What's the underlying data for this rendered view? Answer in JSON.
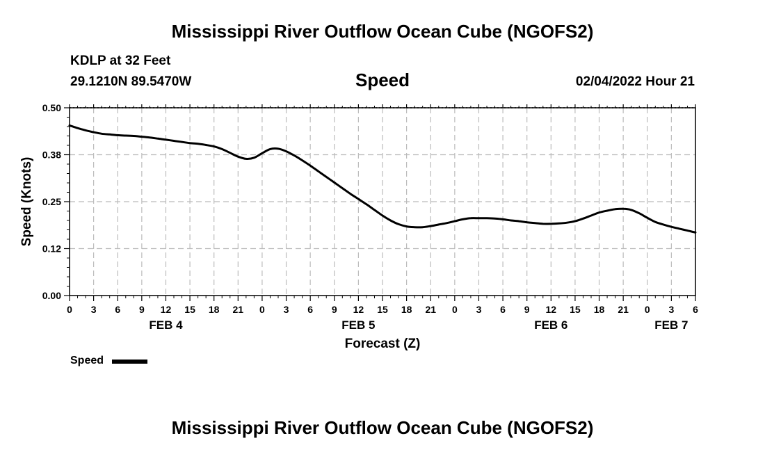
{
  "page_title": "Mississippi River Outflow Ocean Cube (NGOFS2)",
  "station": {
    "name": "KDLP at 32 Feet",
    "coords": "29.1210N  89.5470W",
    "datetime": "02/04/2022 Hour 21"
  },
  "footer_title": "Mississippi River Outflow Ocean Cube (NGOFS2)",
  "colors": {
    "line": "#000000",
    "grid": "#bbbbbb",
    "background": "#ffffff"
  },
  "chart_data": {
    "type": "line",
    "title": "Speed",
    "xlabel": "Forecast (Z)",
    "ylabel": "Speed (Knots)",
    "xlim": [
      0,
      78
    ],
    "ylim": [
      0,
      0.5
    ],
    "grid": true,
    "legend": "bottom-left",
    "x_tick_hours": [
      0,
      3,
      6,
      9,
      12,
      15,
      18,
      21,
      24,
      27,
      30,
      33,
      36,
      39,
      42,
      45,
      48,
      51,
      54,
      57,
      60,
      63,
      66,
      69,
      72,
      75,
      78
    ],
    "x_tick_labels": [
      "0",
      "3",
      "6",
      "9",
      "12",
      "15",
      "18",
      "21",
      "0",
      "3",
      "6",
      "9",
      "12",
      "15",
      "18",
      "21",
      "0",
      "3",
      "6",
      "9",
      "12",
      "15",
      "18",
      "21",
      "0",
      "3",
      "6"
    ],
    "y_ticks": [
      0,
      0.125,
      0.25,
      0.375,
      0.5
    ],
    "y_tick_labels": [
      "0.00",
      "0.12",
      "0.25",
      "0.38",
      "0.50"
    ],
    "day_labels": [
      {
        "hour": 12,
        "label": "FEB 4"
      },
      {
        "hour": 36,
        "label": "FEB 5"
      },
      {
        "hour": 60,
        "label": "FEB 6"
      },
      {
        "hour": 75,
        "label": "FEB 7"
      }
    ],
    "series": [
      {
        "name": "Speed",
        "x": [
          0,
          1,
          2,
          3,
          4,
          5,
          6,
          7,
          8,
          9,
          10,
          11,
          12,
          13,
          14,
          15,
          16,
          17,
          18,
          19,
          20,
          21,
          22,
          23,
          24,
          25,
          26,
          27,
          28,
          29,
          30,
          31,
          32,
          33,
          34,
          35,
          36,
          37,
          38,
          39,
          40,
          41,
          42,
          43,
          44,
          45,
          46,
          47,
          48,
          49,
          50,
          51,
          52,
          53,
          54,
          55,
          56,
          57,
          58,
          59,
          60,
          61,
          62,
          63,
          64,
          65,
          66,
          67,
          68,
          69,
          70,
          71,
          72,
          73,
          74,
          75,
          76,
          77,
          78
        ],
        "values": [
          0.453,
          0.446,
          0.44,
          0.435,
          0.431,
          0.429,
          0.427,
          0.426,
          0.425,
          0.423,
          0.421,
          0.418,
          0.415,
          0.412,
          0.409,
          0.406,
          0.404,
          0.401,
          0.397,
          0.39,
          0.38,
          0.37,
          0.364,
          0.367,
          0.379,
          0.39,
          0.391,
          0.384,
          0.373,
          0.36,
          0.346,
          0.331,
          0.316,
          0.301,
          0.286,
          0.271,
          0.257,
          0.243,
          0.228,
          0.213,
          0.2,
          0.19,
          0.184,
          0.182,
          0.182,
          0.185,
          0.189,
          0.193,
          0.198,
          0.203,
          0.206,
          0.206,
          0.206,
          0.205,
          0.203,
          0.2,
          0.198,
          0.195,
          0.193,
          0.191,
          0.191,
          0.192,
          0.194,
          0.198,
          0.205,
          0.213,
          0.221,
          0.226,
          0.23,
          0.231,
          0.228,
          0.219,
          0.207,
          0.196,
          0.189,
          0.183,
          0.178,
          0.173,
          0.168
        ]
      }
    ]
  }
}
